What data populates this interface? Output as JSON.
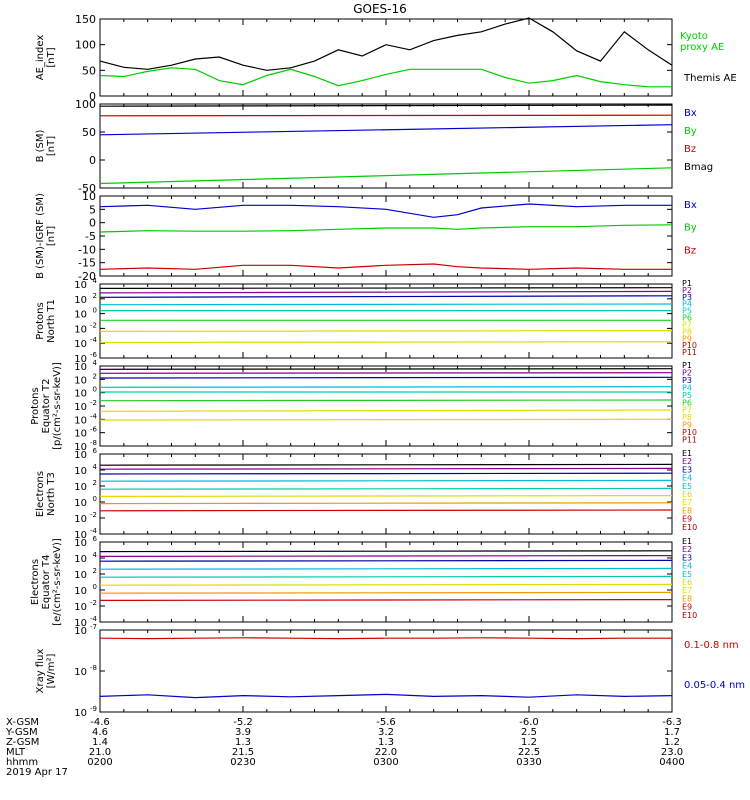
{
  "title": "GOES-16",
  "colors": {
    "black": "#000000",
    "blue": "#0000cc",
    "green": "#00cc00",
    "red": "#cc0000",
    "purple": "#880088",
    "darkblue": "#0000aa",
    "cyan": "#00bbdd",
    "teal": "#00ccaa",
    "lightgreen": "#22cc22",
    "yellow": "#dddd00",
    "orange": "#ee9900",
    "darkred": "#aa0000"
  },
  "chart_data": [
    {
      "type": "line",
      "ylabel": "AE_index [nT]",
      "scale": "linear",
      "ylim": [
        0,
        150
      ],
      "yticks": [
        0,
        50,
        100,
        150
      ],
      "tick_labels": [
        "0",
        "50",
        "100",
        "150"
      ],
      "x": [
        0,
        5,
        10,
        15,
        20,
        25,
        30,
        35,
        40,
        45,
        50,
        55,
        60,
        65,
        70,
        75,
        80,
        85,
        90,
        95,
        100,
        105,
        110,
        115,
        120
      ],
      "series": [
        {
          "name": "Themis AE",
          "color": "black",
          "values": [
            68,
            56,
            52,
            60,
            72,
            76,
            60,
            50,
            55,
            68,
            90,
            78,
            100,
            90,
            108,
            118,
            125,
            140,
            152,
            125,
            88,
            68,
            125,
            90,
            60
          ]
        },
        {
          "name": "Kyoto proxy AE",
          "color": "green",
          "values": [
            40,
            38,
            48,
            55,
            52,
            30,
            22,
            40,
            52,
            38,
            20,
            30,
            42,
            52,
            52,
            52,
            52,
            36,
            25,
            30,
            40,
            28,
            22,
            18,
            18
          ]
        }
      ]
    },
    {
      "type": "line",
      "ylabel": "B (SM) [nT]",
      "scale": "linear",
      "ylim": [
        -50,
        100
      ],
      "yticks": [
        -50,
        0,
        50,
        100
      ],
      "tick_labels": [
        "-50",
        "0",
        "50",
        "100"
      ],
      "x": [
        0,
        120
      ],
      "series": [
        {
          "name": "Bx",
          "color": "blue",
          "values": [
            45,
            63
          ]
        },
        {
          "name": "By",
          "color": "green",
          "values": [
            -42,
            -14
          ]
        },
        {
          "name": "Bz",
          "color": "red",
          "values": [
            79,
            80
          ]
        },
        {
          "name": "Bmag",
          "color": "black",
          "values": [
            96,
            98
          ]
        }
      ]
    },
    {
      "type": "line",
      "ylabel": "B (SM)-IGRF (SM) [nT]",
      "scale": "linear",
      "ylim": [
        -20,
        10
      ],
      "yticks": [
        -20,
        -15,
        -10,
        -5,
        0,
        5,
        10
      ],
      "tick_labels": [
        "-20",
        "-15",
        "-10",
        "-5",
        "0",
        "5",
        "10"
      ],
      "x": [
        0,
        10,
        20,
        30,
        40,
        50,
        60,
        70,
        75,
        80,
        90,
        100,
        110,
        120
      ],
      "series": [
        {
          "name": "Bx",
          "color": "blue",
          "values": [
            6,
            6.5,
            5,
            6.5,
            6.5,
            6,
            5,
            2,
            3,
            5.5,
            7,
            6,
            6.5,
            6.5
          ]
        },
        {
          "name": "By",
          "color": "green",
          "values": [
            -3.5,
            -3,
            -3.2,
            -3.2,
            -3,
            -2.5,
            -2,
            -2,
            -2.5,
            -2,
            -1.5,
            -1.5,
            -1,
            -0.8
          ]
        },
        {
          "name": "Bz",
          "color": "red",
          "values": [
            -17.5,
            -17,
            -17.5,
            -16,
            -16,
            -17,
            -16,
            -15.5,
            -16.5,
            -17,
            -17.5,
            -17,
            -17.5,
            -17.5
          ]
        }
      ]
    },
    {
      "type": "line",
      "ylabel": "Protons North T1",
      "scale": "log",
      "ylim": [
        -6,
        4
      ],
      "yticks": [
        4,
        2,
        0,
        -2,
        -4,
        -6
      ],
      "tick_labels": [
        "10^4",
        "10^2",
        "10^0",
        "10^-2",
        "10^-4",
        "10^-6"
      ],
      "legend": [
        "P1",
        "P2",
        "P3",
        "P4",
        "P5",
        "P6",
        "P7",
        "P8",
        "P9",
        "P10",
        "P11"
      ],
      "legend_colors": [
        "black",
        "purple",
        "darkblue",
        "cyan",
        "teal",
        "lightgreen",
        "yellow",
        "yellow",
        "orange",
        "red",
        "darkred"
      ],
      "x": [
        0,
        120
      ],
      "series": [
        {
          "name": "P1",
          "color": "black",
          "values": [
            3.4,
            3.5
          ]
        },
        {
          "name": "P2",
          "color": "purple",
          "values": [
            2.8,
            3.0
          ]
        },
        {
          "name": "P3",
          "color": "darkblue",
          "values": [
            2.2,
            2.4
          ]
        },
        {
          "name": "P4",
          "color": "cyan",
          "values": [
            1.2,
            1.3
          ]
        },
        {
          "name": "P5",
          "color": "teal",
          "values": [
            0.4,
            0.4
          ]
        },
        {
          "name": "P6",
          "color": "lightgreen",
          "values": [
            -0.9,
            -0.9
          ]
        },
        {
          "name": "P7",
          "color": "yellow",
          "values": [
            -2.4,
            -2.3
          ]
        },
        {
          "name": "P8",
          "color": "yellow",
          "values": [
            -3.9,
            -3.8
          ]
        }
      ]
    },
    {
      "type": "line",
      "ylabel": "Protons Equator T2 [p/(cm²-s-sr-keV)]",
      "scale": "log",
      "ylim": [
        -8,
        4
      ],
      "yticks": [
        4,
        2,
        0,
        -2,
        -4,
        -6,
        -8
      ],
      "tick_labels": [
        "10^4",
        "10^2",
        "10^0",
        "10^-2",
        "10^-4",
        "10^-6",
        "10^-8"
      ],
      "legend": [
        "P1",
        "P2",
        "P3",
        "P4",
        "P5",
        "P6",
        "P7",
        "P8",
        "P9",
        "P10",
        "P11"
      ],
      "legend_colors": [
        "black",
        "purple",
        "darkblue",
        "cyan",
        "teal",
        "lightgreen",
        "yellow",
        "yellow",
        "orange",
        "red",
        "darkred"
      ],
      "x": [
        0,
        120
      ],
      "series": [
        {
          "name": "P1",
          "color": "black",
          "values": [
            3.5,
            3.6
          ]
        },
        {
          "name": "P2",
          "color": "purple",
          "values": [
            2.9,
            3.0
          ]
        },
        {
          "name": "P3",
          "color": "darkblue",
          "values": [
            2.2,
            2.3
          ]
        },
        {
          "name": "P4",
          "color": "cyan",
          "values": [
            0.8,
            0.9
          ]
        },
        {
          "name": "P5",
          "color": "teal",
          "values": [
            0.1,
            0.1
          ]
        },
        {
          "name": "P6",
          "color": "lightgreen",
          "values": [
            -1.2,
            -1.1
          ]
        },
        {
          "name": "P7",
          "color": "yellow",
          "values": [
            -2.8,
            -2.6
          ]
        },
        {
          "name": "P8",
          "color": "yellow",
          "values": [
            -4.1,
            -4.0
          ]
        }
      ]
    },
    {
      "type": "line",
      "ylabel": "Electrons North T3",
      "scale": "log",
      "ylim": [
        -4,
        6
      ],
      "yticks": [
        6,
        4,
        2,
        0,
        -2,
        -4
      ],
      "tick_labels": [
        "10^6",
        "10^4",
        "10^2",
        "10^0",
        "10^-2",
        "10^-4"
      ],
      "legend": [
        "E1",
        "E2",
        "E3",
        "E4",
        "E5",
        "E6",
        "E7",
        "E8",
        "E9",
        "E10"
      ],
      "legend_colors": [
        "black",
        "purple",
        "darkblue",
        "cyan",
        "teal",
        "yellow",
        "yellow",
        "orange",
        "red",
        "darkred"
      ],
      "x": [
        0,
        120
      ],
      "series": [
        {
          "name": "E1",
          "color": "black",
          "values": [
            4.6,
            4.7
          ]
        },
        {
          "name": "E2",
          "color": "purple",
          "values": [
            4.1,
            4.2
          ]
        },
        {
          "name": "E3",
          "color": "darkblue",
          "values": [
            3.5,
            3.6
          ]
        },
        {
          "name": "E4",
          "color": "cyan",
          "values": [
            2.6,
            2.7
          ]
        },
        {
          "name": "E5",
          "color": "teal",
          "values": [
            1.6,
            1.7
          ]
        },
        {
          "name": "E6",
          "color": "yellow",
          "values": [
            0.7,
            0.8
          ]
        },
        {
          "name": "E7",
          "color": "orange",
          "values": [
            -0.2,
            -0.1
          ]
        },
        {
          "name": "E8",
          "color": "red",
          "values": [
            -1.1,
            -1.0
          ]
        }
      ]
    },
    {
      "type": "line",
      "ylabel": "Electrons Equator T4 [e/(cm²-s-sr-keV)]",
      "scale": "log",
      "ylim": [
        -4,
        6
      ],
      "yticks": [
        6,
        4,
        2,
        0,
        -2,
        -4
      ],
      "tick_labels": [
        "10^6",
        "10^4",
        "10^2",
        "10^0",
        "10^-2",
        "10^-4"
      ],
      "legend": [
        "E1",
        "E2",
        "E3",
        "E4",
        "E5",
        "E6",
        "E7",
        "E8",
        "E9",
        "E10"
      ],
      "legend_colors": [
        "black",
        "purple",
        "darkblue",
        "cyan",
        "teal",
        "yellow",
        "yellow",
        "orange",
        "red",
        "darkred"
      ],
      "x": [
        0,
        120
      ],
      "series": [
        {
          "name": "E1",
          "color": "black",
          "values": [
            4.8,
            4.9
          ]
        },
        {
          "name": "E2",
          "color": "purple",
          "values": [
            4.2,
            4.3
          ]
        },
        {
          "name": "E3",
          "color": "darkblue",
          "values": [
            3.6,
            3.7
          ]
        },
        {
          "name": "E4",
          "color": "cyan",
          "values": [
            2.6,
            2.7
          ]
        },
        {
          "name": "E5",
          "color": "teal",
          "values": [
            1.6,
            1.7
          ]
        },
        {
          "name": "E6",
          "color": "yellow",
          "values": [
            0.6,
            0.7
          ]
        },
        {
          "name": "E7",
          "color": "orange",
          "values": [
            -0.4,
            -0.3
          ]
        },
        {
          "name": "E8",
          "color": "red",
          "values": [
            -1.3,
            -1.2
          ]
        }
      ]
    },
    {
      "type": "line",
      "ylabel": "Xray flux [W/m²]",
      "scale": "log",
      "ylim": [
        -9,
        -7
      ],
      "yticks": [
        -7,
        -8,
        -9
      ],
      "tick_labels": [
        "10^-7",
        "10^-8",
        "10^-9"
      ],
      "x": [
        0,
        10,
        20,
        30,
        40,
        50,
        60,
        70,
        80,
        90,
        100,
        110,
        120
      ],
      "series": [
        {
          "name": "0.1-0.8 nm",
          "color": "red",
          "values": [
            -7.2,
            -7.21,
            -7.2,
            -7.19,
            -7.2,
            -7.21,
            -7.2,
            -7.2,
            -7.19,
            -7.2,
            -7.21,
            -7.2,
            -7.2
          ]
        },
        {
          "name": "0.05-0.4 nm",
          "color": "blue",
          "values": [
            -8.62,
            -8.58,
            -8.65,
            -8.6,
            -8.63,
            -8.6,
            -8.57,
            -8.62,
            -8.6,
            -8.64,
            -8.58,
            -8.62,
            -8.6
          ]
        }
      ]
    }
  ],
  "x_axis": {
    "time_label": "hhmm",
    "date": "2019 Apr 17",
    "rows": [
      {
        "name": "X-GSM",
        "values": [
          "-4.6",
          "-5.2",
          "-5.6",
          "-6.0",
          "-6.3"
        ]
      },
      {
        "name": "Y-GSM",
        "values": [
          "4.6",
          "3.9",
          "3.2",
          "2.5",
          "1.7"
        ]
      },
      {
        "name": "Z-GSM",
        "values": [
          "1.4",
          "1.3",
          "1.3",
          "1.2",
          "1.2"
        ]
      },
      {
        "name": "MLT",
        "values": [
          "21.0",
          "21.5",
          "22.0",
          "22.5",
          "23.0"
        ]
      },
      {
        "name": "hhmm",
        "values": [
          "0200",
          "0230",
          "0300",
          "0330",
          "0400"
        ]
      }
    ]
  }
}
